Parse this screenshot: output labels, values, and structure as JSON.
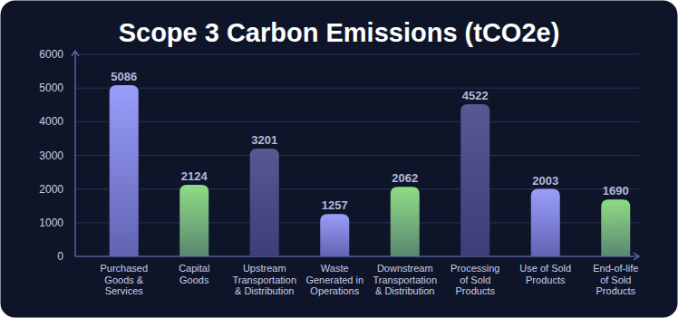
{
  "chart_data": {
    "type": "bar",
    "title": "Scope 3 Carbon Emissions (tCO2e)",
    "categories": [
      "Purchased Goods & Services",
      "Capital Goods",
      "Upstream Transportation & Distribution",
      "Waste Generated in Operations",
      "Downstream Transportation & Distribution",
      "Processing of Sold Products",
      "Use of Sold Products",
      "End-of-life of Sold Products"
    ],
    "values": [
      5086,
      2124,
      3201,
      1257,
      2062,
      4522,
      2003,
      1690
    ],
    "colors": [
      "#9a9dfa",
      "#8fdc84",
      "#585893",
      "#9a9dfa",
      "#8fdc84",
      "#585893",
      "#9a9dfa",
      "#8fdc84"
    ],
    "ylim": [
      0,
      6000
    ],
    "yticks": [
      0,
      1000,
      2000,
      3000,
      4000,
      5000,
      6000
    ],
    "grid": true,
    "data_labels": true
  }
}
